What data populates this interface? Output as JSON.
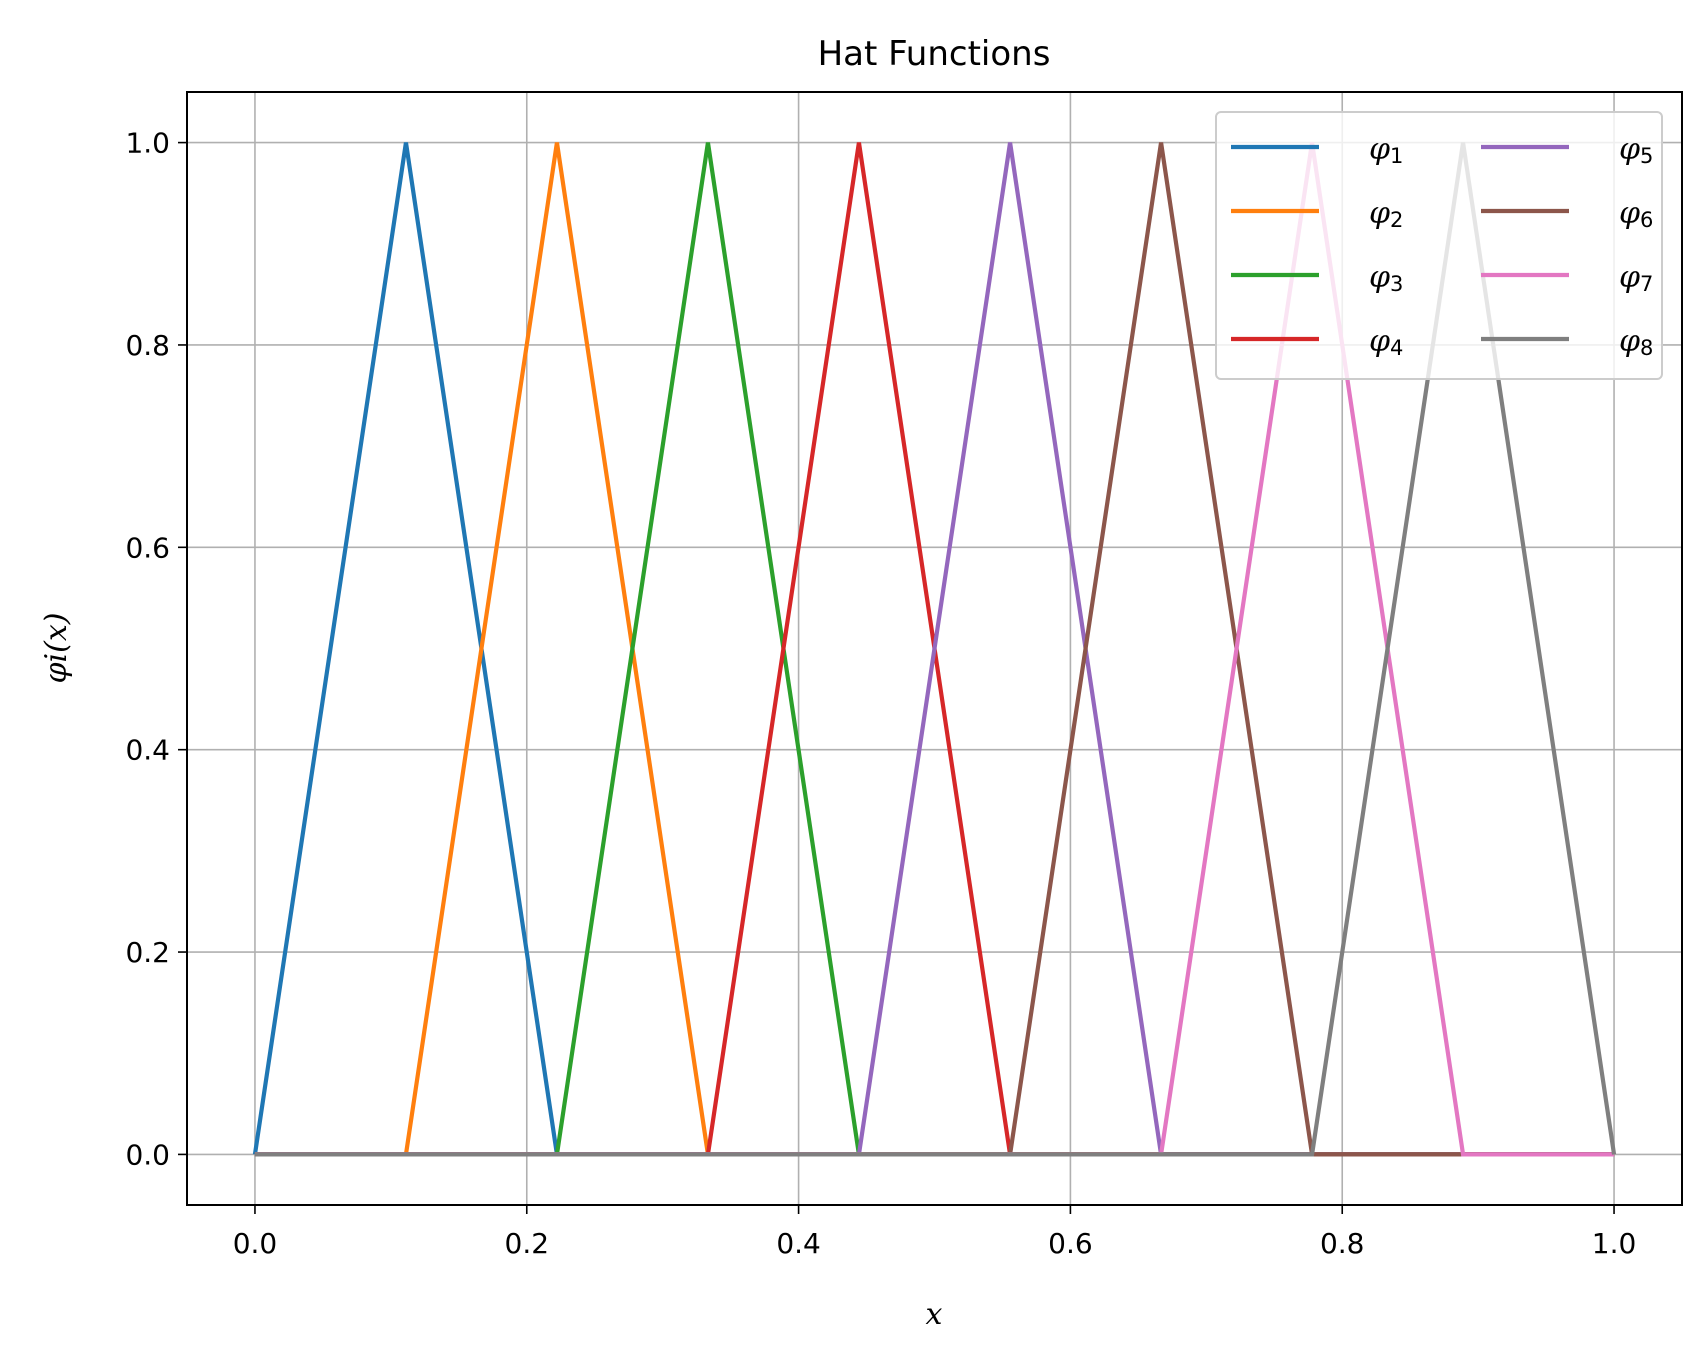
{
  "chart_data": {
    "type": "line",
    "title": "Hat Functions",
    "xlabel": "x",
    "ylabel": "φi(x)",
    "xlim": [
      -0.05,
      1.05
    ],
    "ylim": [
      -0.05,
      1.05
    ],
    "xticks": [
      "0.0",
      "0.2",
      "0.4",
      "0.6",
      "0.8",
      "1.0"
    ],
    "yticks": [
      "0.0",
      "0.2",
      "0.4",
      "0.6",
      "0.8",
      "1.0"
    ],
    "grid": true,
    "legend_position": "top-right",
    "legend_columns": 2,
    "x": [
      0.0,
      0.1111,
      0.2222,
      0.3333,
      0.4444,
      0.5556,
      0.6667,
      0.7778,
      0.8889,
      1.0
    ],
    "series": [
      {
        "name": "φ1",
        "color": "#1f77b4",
        "values": [
          0,
          1,
          0,
          0,
          0,
          0,
          0,
          0,
          0,
          0
        ]
      },
      {
        "name": "φ2",
        "color": "#ff7f0e",
        "values": [
          0,
          0,
          1,
          0,
          0,
          0,
          0,
          0,
          0,
          0
        ]
      },
      {
        "name": "φ3",
        "color": "#2ca02c",
        "values": [
          0,
          0,
          0,
          1,
          0,
          0,
          0,
          0,
          0,
          0
        ]
      },
      {
        "name": "φ4",
        "color": "#d62728",
        "values": [
          0,
          0,
          0,
          0,
          1,
          0,
          0,
          0,
          0,
          0
        ]
      },
      {
        "name": "φ5",
        "color": "#9467bd",
        "values": [
          0,
          0,
          0,
          0,
          0,
          1,
          0,
          0,
          0,
          0
        ]
      },
      {
        "name": "φ6",
        "color": "#8c564b",
        "values": [
          0,
          0,
          0,
          0,
          0,
          0,
          1,
          0,
          0,
          0
        ]
      },
      {
        "name": "φ7",
        "color": "#e377c2",
        "values": [
          0,
          0,
          0,
          0,
          0,
          0,
          0,
          1,
          0,
          0
        ]
      },
      {
        "name": "φ8",
        "color": "#7f7f7f",
        "values": [
          0,
          0,
          0,
          0,
          0,
          0,
          0,
          0,
          1,
          0
        ]
      }
    ]
  }
}
